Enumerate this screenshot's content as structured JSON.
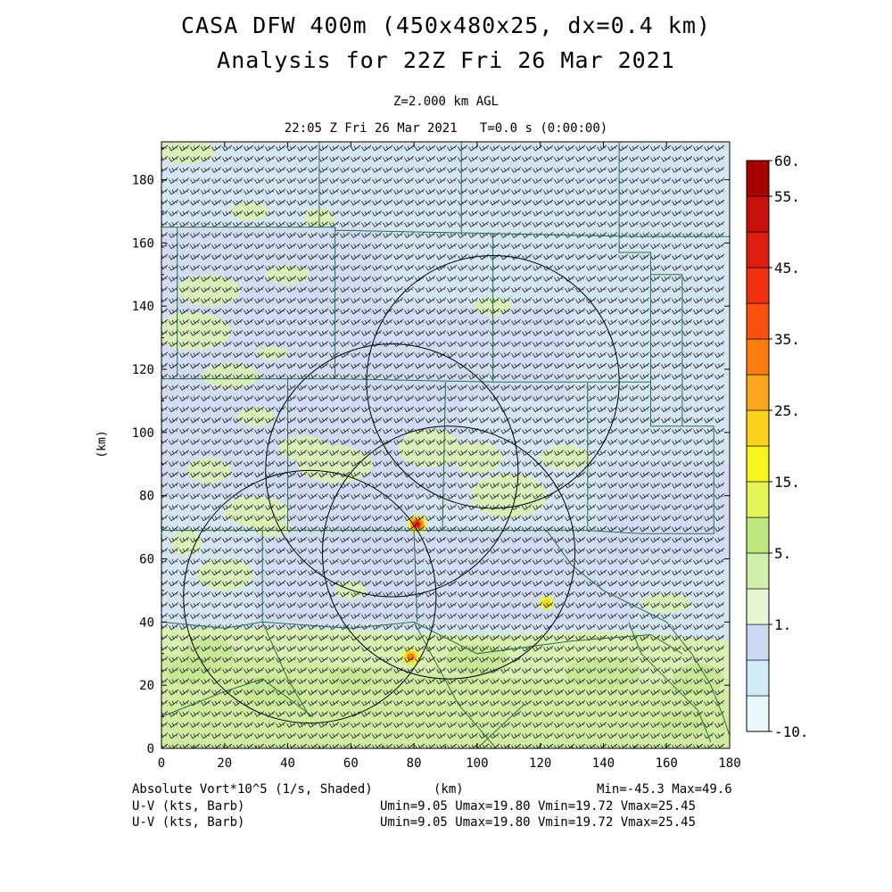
{
  "header": {
    "title_line1": "CASA DFW 400m (450x480x25, dx=0.4 km)",
    "title_line2": "Analysis for 22Z Fri 26 Mar 2021",
    "level": "Z=2.000 km AGL",
    "time": "22:05 Z Fri 26 Mar 2021   T=0.0 s (0:00:00)"
  },
  "axes": {
    "xlabel": "(km)",
    "ylabel": "(km)",
    "x_ticks": [
      0,
      20,
      40,
      60,
      80,
      100,
      120,
      140,
      160,
      180
    ],
    "y_ticks": [
      0,
      20,
      40,
      60,
      80,
      100,
      120,
      140,
      160,
      180
    ],
    "xlim": [
      0,
      180
    ],
    "ylim": [
      0,
      192
    ]
  },
  "colorbar": {
    "labels": [
      "60.",
      "55.",
      "45.",
      "35.",
      "25.",
      "15.",
      "5.",
      "1.",
      "-10."
    ],
    "colors": [
      "#e8f8fc",
      "#d2ecf7",
      "#ccd9f3",
      "#e6f5d2",
      "#cfefaa",
      "#bde67c",
      "#e4f55a",
      "#f7f51e",
      "#fbd21c",
      "#fba51c",
      "#fb7d12",
      "#fb5010",
      "#f1300f",
      "#dc1c0c",
      "#c8100a",
      "#a80000"
    ]
  },
  "footer": {
    "field_label": "Absolute Vort*10^5 (1/s, Shaded)",
    "xlabel": "(km)",
    "minmax": "Min=-45.3 Max=49.6",
    "wind1_label": "U-V (kts, Barb)",
    "wind1_stats": "Umin=9.05 Umax=19.80 Vmin=19.72 Vmax=25.45",
    "wind2_label": "U-V (kts, Barb)",
    "wind2_stats": "Umin=9.05 Umax=19.80 Vmin=19.72 Vmax=25.45"
  },
  "map": {
    "radar_range_rings_km": [
      {
        "cx": 105,
        "cy": 116,
        "r": 40
      },
      {
        "cx": 73,
        "cy": 88,
        "r": 40
      },
      {
        "cx": 91,
        "cy": 62,
        "r": 40
      },
      {
        "cx": 47,
        "cy": 48,
        "r": 40
      }
    ]
  }
}
